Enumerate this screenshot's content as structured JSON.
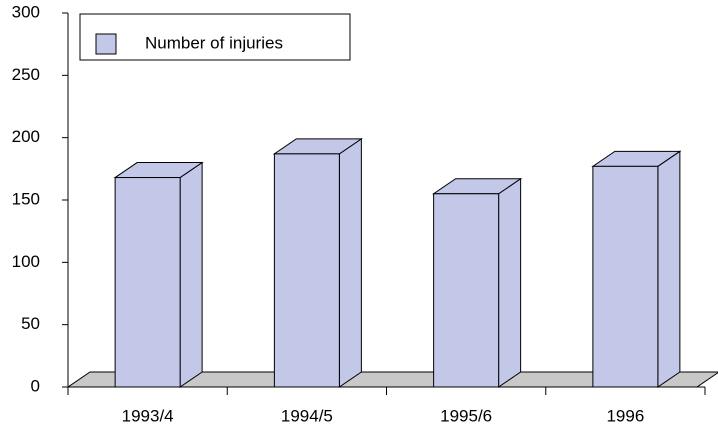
{
  "chart_data": {
    "type": "bar",
    "categories": [
      "1993/4",
      "1994/5",
      "1995/6",
      "1996"
    ],
    "series": [
      {
        "name": "Number of injuries",
        "color": "#c3c8e8",
        "values": [
          168,
          187,
          155,
          177
        ]
      }
    ],
    "ylim": [
      0,
      300
    ],
    "yticks": [
      0,
      50,
      100,
      150,
      200,
      250,
      300
    ],
    "legend": "upper left"
  }
}
